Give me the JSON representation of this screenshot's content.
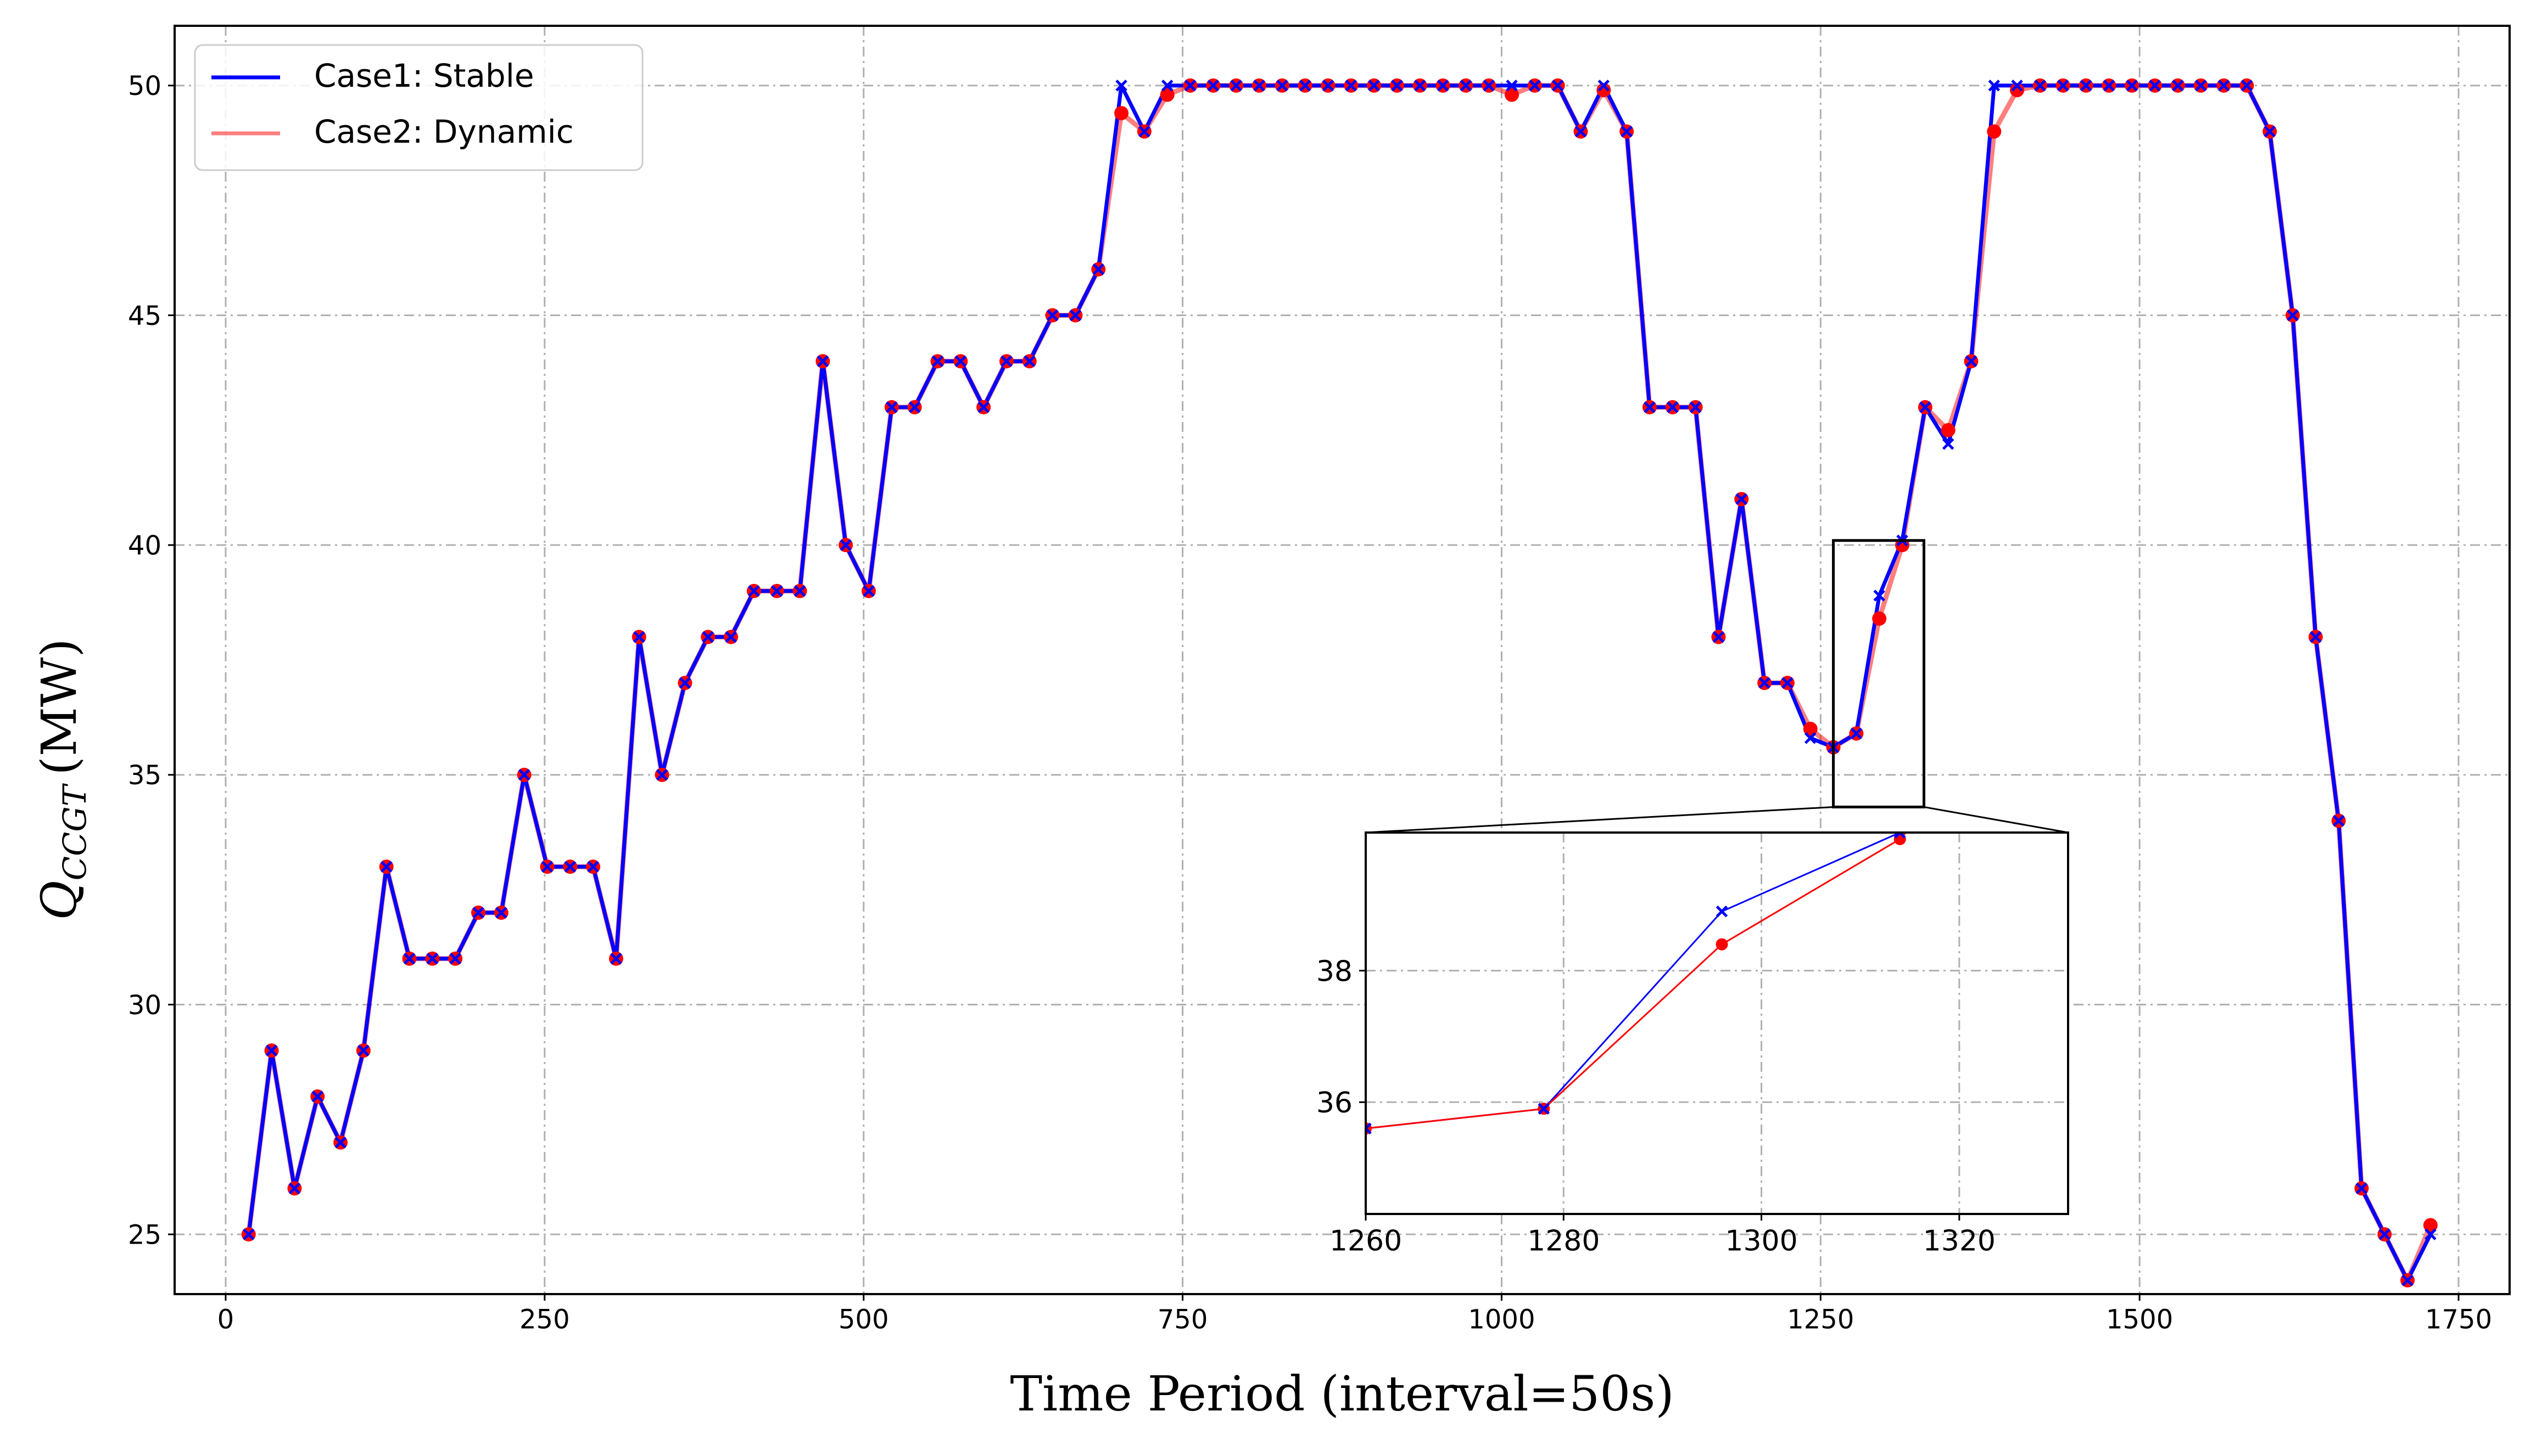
{
  "chart_data": [
    {
      "type": "line",
      "title": "",
      "xlabel": "Time Period (interval=50s)",
      "ylabel_main": "Q",
      "ylabel_sub": "CCGT",
      "ylabel_unit": "(MW)",
      "xlim": [
        -40,
        1790
      ],
      "ylim": [
        23.7,
        51.3
      ],
      "xticks": [
        0,
        250,
        500,
        750,
        1000,
        1250,
        1500,
        1750
      ],
      "yticks": [
        25,
        30,
        35,
        40,
        45,
        50
      ],
      "grid": true,
      "legend_position": "top-left",
      "series": [
        {
          "name": "Case1: Stable",
          "color": "#0000ff",
          "marker": "x",
          "x": [
            18,
            36,
            54,
            72,
            90,
            108,
            126,
            144,
            162,
            180,
            198,
            216,
            234,
            252,
            270,
            288,
            306,
            324,
            342,
            360,
            378,
            396,
            414,
            432,
            450,
            468,
            486,
            504,
            522,
            540,
            558,
            576,
            594,
            612,
            630,
            648,
            666,
            684,
            702,
            720,
            738,
            756,
            774,
            792,
            810,
            828,
            846,
            864,
            882,
            900,
            918,
            936,
            954,
            972,
            990,
            1008,
            1026,
            1044,
            1062,
            1080,
            1098,
            1116,
            1134,
            1152,
            1170,
            1188,
            1206,
            1224,
            1242,
            1260,
            1278,
            1296,
            1314,
            1332,
            1350,
            1368,
            1386,
            1404,
            1422,
            1440,
            1458,
            1476,
            1494,
            1512,
            1530,
            1548,
            1566,
            1584,
            1602,
            1620,
            1638,
            1656,
            1674,
            1692,
            1710,
            1728
          ],
          "y": [
            25,
            29,
            26,
            28,
            27,
            29,
            33,
            31,
            31,
            31,
            32,
            32,
            35,
            33,
            33,
            33,
            31,
            38,
            35,
            37,
            38,
            38,
            39,
            39,
            39,
            44,
            40,
            39,
            43,
            43,
            44,
            44,
            43,
            44,
            44,
            45,
            45,
            46,
            50,
            49,
            50,
            50,
            50,
            50,
            50,
            50,
            50,
            50,
            50,
            50,
            50,
            50,
            50,
            50,
            50,
            50,
            50,
            50,
            49,
            50,
            49,
            43,
            43,
            43,
            38,
            41,
            37,
            37,
            35.8,
            35.6,
            35.9,
            38.9,
            40.1,
            43,
            42.2,
            44,
            50,
            50,
            50,
            50,
            50,
            50,
            50,
            50,
            50,
            50,
            50,
            50,
            49,
            45,
            38,
            34,
            26,
            25,
            24,
            25
          ]
        },
        {
          "name": "Case2: Dynamic",
          "color": "#ff0000",
          "marker": "o",
          "x": [
            18,
            36,
            54,
            72,
            90,
            108,
            126,
            144,
            162,
            180,
            198,
            216,
            234,
            252,
            270,
            288,
            306,
            324,
            342,
            360,
            378,
            396,
            414,
            432,
            450,
            468,
            486,
            504,
            522,
            540,
            558,
            576,
            594,
            612,
            630,
            648,
            666,
            684,
            702,
            720,
            738,
            756,
            774,
            792,
            810,
            828,
            846,
            864,
            882,
            900,
            918,
            936,
            954,
            972,
            990,
            1008,
            1026,
            1044,
            1062,
            1080,
            1098,
            1116,
            1134,
            1152,
            1170,
            1188,
            1206,
            1224,
            1242,
            1260,
            1278,
            1296,
            1314,
            1332,
            1350,
            1368,
            1386,
            1404,
            1422,
            1440,
            1458,
            1476,
            1494,
            1512,
            1530,
            1548,
            1566,
            1584,
            1602,
            1620,
            1638,
            1656,
            1674,
            1692,
            1710,
            1728
          ],
          "y": [
            25,
            29,
            26,
            28,
            27,
            29,
            33,
            31,
            31,
            31,
            32,
            32,
            35,
            33,
            33,
            33,
            31,
            38,
            35,
            37,
            38,
            38,
            39,
            39,
            39,
            44,
            40,
            39,
            43,
            43,
            44,
            44,
            43,
            44,
            44,
            45,
            45,
            46,
            49.4,
            49,
            49.8,
            50,
            50,
            50,
            50,
            50,
            50,
            50,
            50,
            50,
            50,
            50,
            50,
            50,
            50,
            49.8,
            50,
            50,
            49,
            49.9,
            49,
            43,
            43,
            43,
            38,
            41,
            37,
            37,
            36,
            35.6,
            35.9,
            38.4,
            40,
            43,
            42.5,
            44,
            49,
            49.9,
            50,
            50,
            50,
            50,
            50,
            50,
            50,
            50,
            50,
            50,
            49,
            45,
            38,
            34,
            26,
            25,
            24,
            25.2
          ]
        }
      ]
    },
    {
      "type": "line",
      "title": "",
      "xlim": [
        1260,
        1331
      ],
      "ylim": [
        34.3,
        40.1
      ],
      "xticks": [
        1260,
        1280,
        1300,
        1320
      ],
      "yticks": [
        36,
        38
      ],
      "grid": true,
      "series": [
        {
          "name": "Case1: Stable",
          "color": "#0000ff",
          "x": [
            1260,
            1278,
            1296,
            1314,
            1332
          ],
          "y": [
            35.6,
            35.9,
            38.9,
            40.1,
            43
          ]
        },
        {
          "name": "Case2: Dynamic",
          "color": "#ff0000",
          "x": [
            1260,
            1278,
            1296,
            1314,
            1332
          ],
          "y": [
            35.6,
            35.9,
            38.4,
            40,
            43
          ]
        }
      ]
    }
  ]
}
